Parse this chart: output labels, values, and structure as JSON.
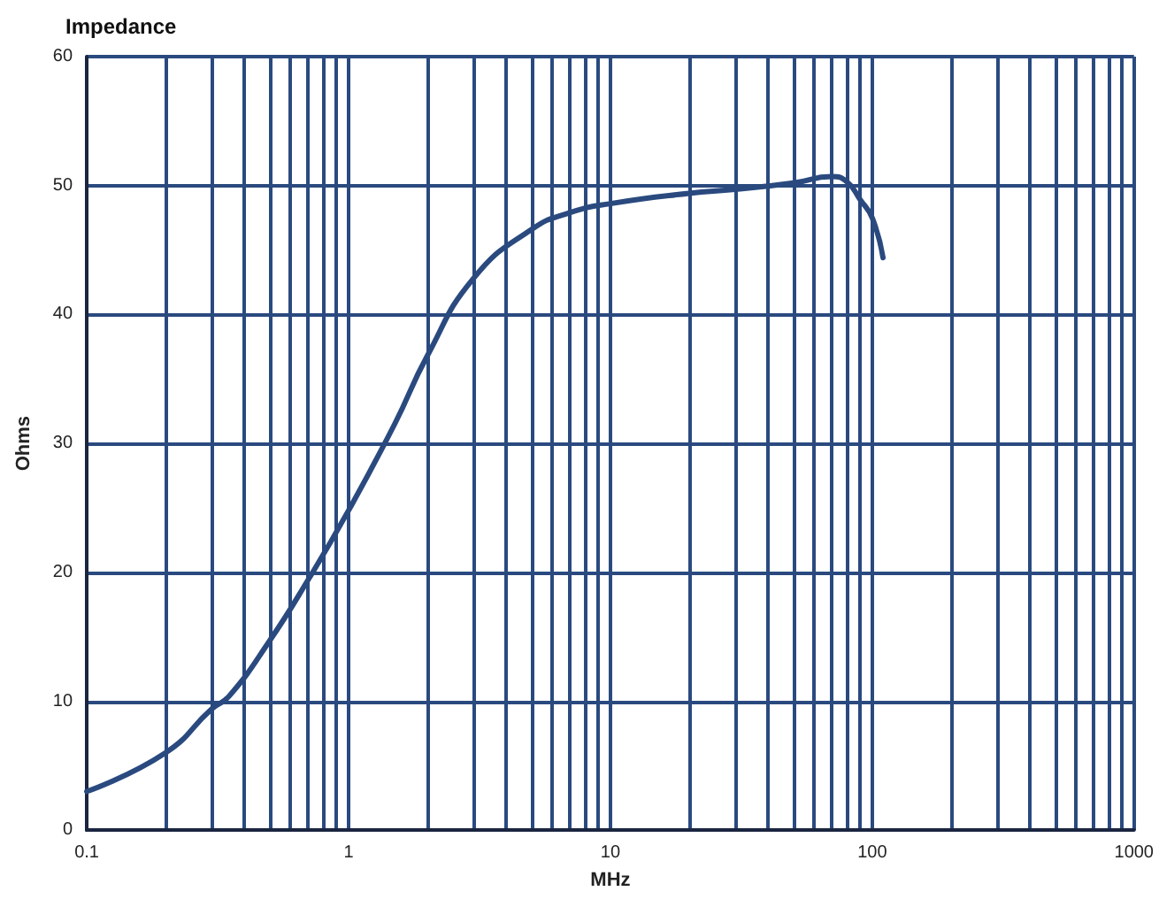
{
  "chart_data": {
    "type": "line",
    "title": "Impedance",
    "xlabel": "MHz",
    "ylabel": "Ohms",
    "series": [
      {
        "color": "#2a4a7f",
        "x": [
          0.1,
          0.2,
          0.3,
          0.35,
          0.5,
          0.7,
          1,
          1.5,
          2,
          3,
          5,
          7,
          10,
          20,
          30,
          50,
          70,
          80,
          90,
          100,
          110
        ],
        "values": [
          3,
          6,
          9.4,
          10.4,
          14.7,
          19.4,
          24.8,
          31.5,
          36.8,
          42.8,
          46.6,
          47.9,
          48.6,
          49.4,
          49.7,
          50.2,
          50.7,
          50.3,
          48.9,
          47.5,
          44.4
        ]
      }
    ],
    "log": "x",
    "xlim": [
      0.1,
      1000
    ],
    "ylim": [
      0,
      60
    ],
    "xticks": [
      0.1,
      {
        "value": 0.2,
        "label": null
      },
      {
        "value": 0.3,
        "label": null
      },
      {
        "value": 0.4,
        "label": null
      },
      {
        "value": 0.5,
        "label": null
      },
      {
        "value": 0.6,
        "label": null
      },
      {
        "value": 0.7,
        "label": null
      },
      {
        "value": 0.8,
        "label": null
      },
      {
        "value": 0.9,
        "label": null
      },
      1,
      {
        "value": 2,
        "label": null
      },
      {
        "value": 3,
        "label": null
      },
      {
        "value": 4,
        "label": null
      },
      {
        "value": 5,
        "label": null
      },
      {
        "value": 6,
        "label": null
      },
      {
        "value": 7,
        "label": null
      },
      {
        "value": 8,
        "label": null
      },
      {
        "value": 9,
        "label": null
      },
      10,
      {
        "value": 20,
        "label": null
      },
      {
        "value": 30,
        "label": null
      },
      {
        "value": 40,
        "label": null
      },
      {
        "value": 50,
        "label": null
      },
      {
        "value": 60,
        "label": null
      },
      {
        "value": 70,
        "label": null
      },
      {
        "value": 80,
        "label": null
      },
      {
        "value": 90,
        "label": null
      },
      100,
      {
        "value": 200,
        "label": null
      },
      {
        "value": 300,
        "label": null
      },
      {
        "value": 400,
        "label": null
      },
      {
        "value": 500,
        "label": null
      },
      {
        "value": 600,
        "label": null
      },
      {
        "value": 700,
        "label": null
      },
      {
        "value": 800,
        "label": null
      },
      {
        "value": 900,
        "label": null
      },
      1000
    ],
    "yticks": [
      0,
      10,
      20,
      30,
      40,
      50,
      60
    ],
    "grid": true,
    "marker": "none",
    "line_style": "solid"
  }
}
